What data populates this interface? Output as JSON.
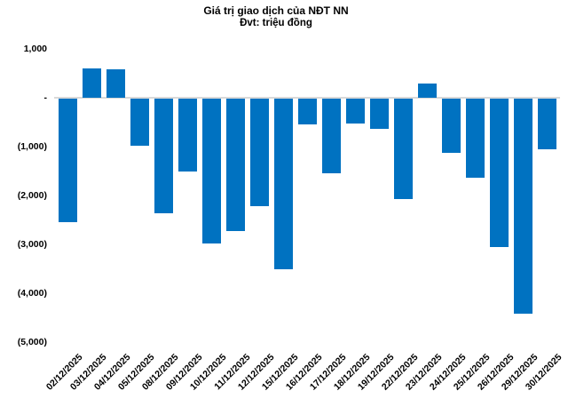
{
  "title": "Giá trị giao dịch của NĐT NN",
  "subtitle": "Đvt: triệu đồng",
  "colors": {
    "bar": "#0072C1",
    "axis_line": "#D9D9D9",
    "text": "#000000",
    "background": "#FFFFFF"
  },
  "chart_data": {
    "type": "bar",
    "title": "Giá trị giao dịch của NĐT NN",
    "subtitle": "Đvt: triệu đồng",
    "xlabel": "",
    "ylabel": "",
    "grid": false,
    "legend": false,
    "ylim": [
      -5000,
      1000
    ],
    "categories": [
      "02/12/2025",
      "03/12/2025",
      "04/12/2025",
      "05/12/2025",
      "08/12/2025",
      "09/12/2025",
      "10/12/2025",
      "11/12/2025",
      "12/12/2025",
      "15/12/2025",
      "16/12/2025",
      "17/12/2025",
      "18/12/2025",
      "19/12/2025",
      "22/12/2025",
      "23/12/2025",
      "24/12/2025",
      "25/12/2025",
      "26/12/2025",
      "29/12/2025",
      "30/12/2025"
    ],
    "values": [
      -2520,
      600,
      580,
      -960,
      -2350,
      -1490,
      -2970,
      -2700,
      -2200,
      -3490,
      -530,
      -1530,
      -510,
      -620,
      -2050,
      290,
      -1110,
      -1620,
      -3030,
      -4400,
      -1030
    ],
    "ytick_labels": [
      "1,000",
      "-",
      "(1,000)",
      "(2,000)",
      "(3,000)",
      "(4,000)",
      "(5,000)"
    ],
    "ytick_values": [
      1000,
      0,
      -1000,
      -2000,
      -3000,
      -4000,
      -5000
    ]
  }
}
